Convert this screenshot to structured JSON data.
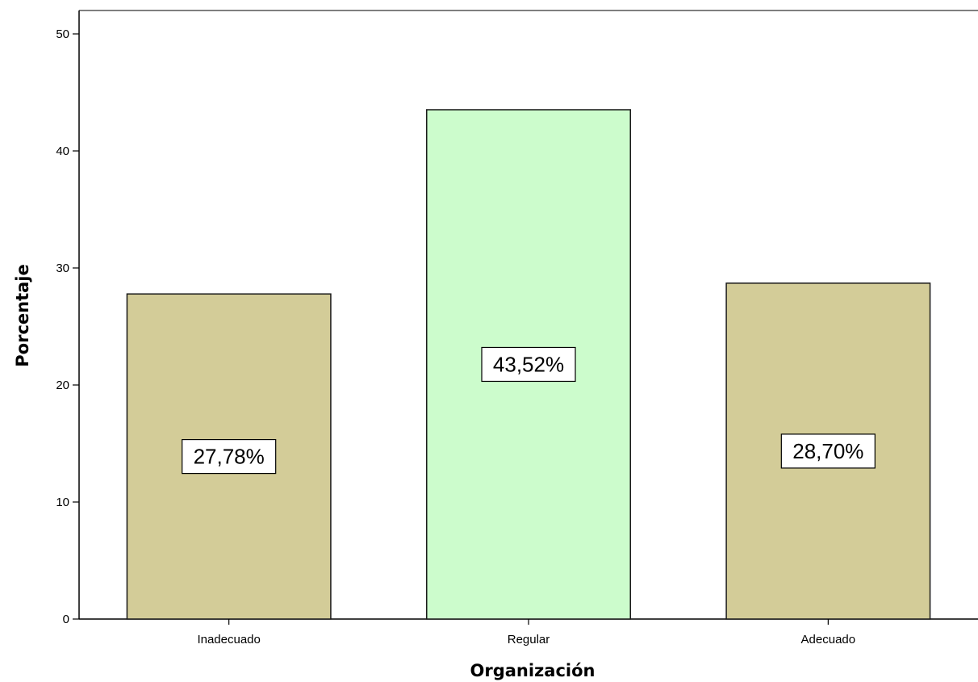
{
  "chart_data": {
    "type": "bar",
    "categories": [
      "Inadecuado",
      "Regular",
      "Adecuado"
    ],
    "values": [
      27.78,
      43.52,
      28.7
    ],
    "data_labels": [
      "27,78%",
      "43,52%",
      "28,70%"
    ],
    "colors": [
      "#d3cc98",
      "#ccfccc",
      "#d3cc98"
    ],
    "xlabel": "Organización",
    "ylabel": "Porcentaje",
    "ylim": [
      0,
      52
    ],
    "yticks": [
      0,
      10,
      20,
      30,
      40,
      50
    ],
    "grid": false
  }
}
